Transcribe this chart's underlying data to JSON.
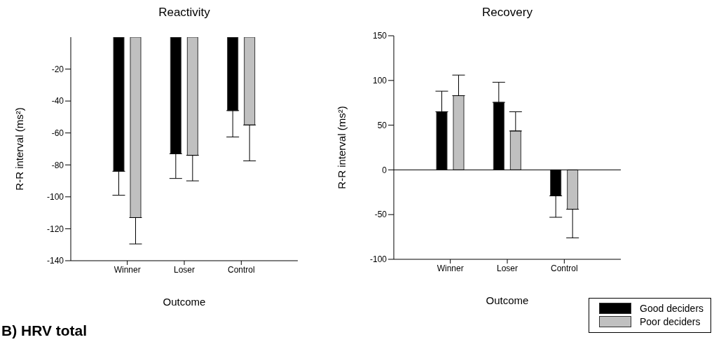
{
  "chart_data": [
    {
      "type": "bar",
      "title": "Reactivity",
      "xlabel": "Outcome",
      "ylabel": "R-R interval (ms²)",
      "categories": [
        "Winner",
        "Loser",
        "Control"
      ],
      "series": [
        {
          "color": "#000000",
          "values": [
            -84,
            -73,
            -46
          ],
          "errors": [
            [
              -99,
              -84
            ],
            [
              -88.5,
              -73
            ],
            [
              -62.5,
              -46
            ]
          ]
        },
        {
          "color": "#c0c0c0",
          "values": [
            -113,
            -74,
            -55
          ],
          "errors": [
            [
              -129.5,
              -113
            ],
            [
              -90,
              -74
            ],
            [
              -77.5,
              -55
            ]
          ]
        }
      ],
      "ylim": [
        -140,
        0
      ],
      "yticks": [
        -140,
        -120,
        -100,
        -80,
        -60,
        -40,
        -20
      ],
      "grid": false,
      "annotations": [
        "B) HRV total"
      ]
    },
    {
      "type": "bar",
      "title": "Recovery",
      "xlabel": "Outcome",
      "ylabel": "R-R interval (ms²)",
      "categories": [
        "Winner",
        "Loser",
        "Control"
      ],
      "series": [
        {
          "name": "Good deciders",
          "color": "#000000",
          "values": [
            65,
            75.5,
            -29
          ],
          "errors": [
            [
              65,
              88
            ],
            [
              75.5,
              98
            ],
            [
              -53,
              -29
            ]
          ]
        },
        {
          "name": "Poor deciders",
          "color": "#c0c0c0",
          "values": [
            83,
            43.5,
            -44
          ],
          "errors": [
            [
              83,
              106
            ],
            [
              43.5,
              65
            ],
            [
              -76,
              -44
            ]
          ]
        }
      ],
      "ylim": [
        -100,
        150
      ],
      "yticks": [
        -100,
        -50,
        0,
        50,
        100,
        150
      ],
      "grid": false,
      "ref_lines": [
        {
          "axis": "y",
          "value": 0
        }
      ],
      "legend": "bottom right"
    }
  ]
}
